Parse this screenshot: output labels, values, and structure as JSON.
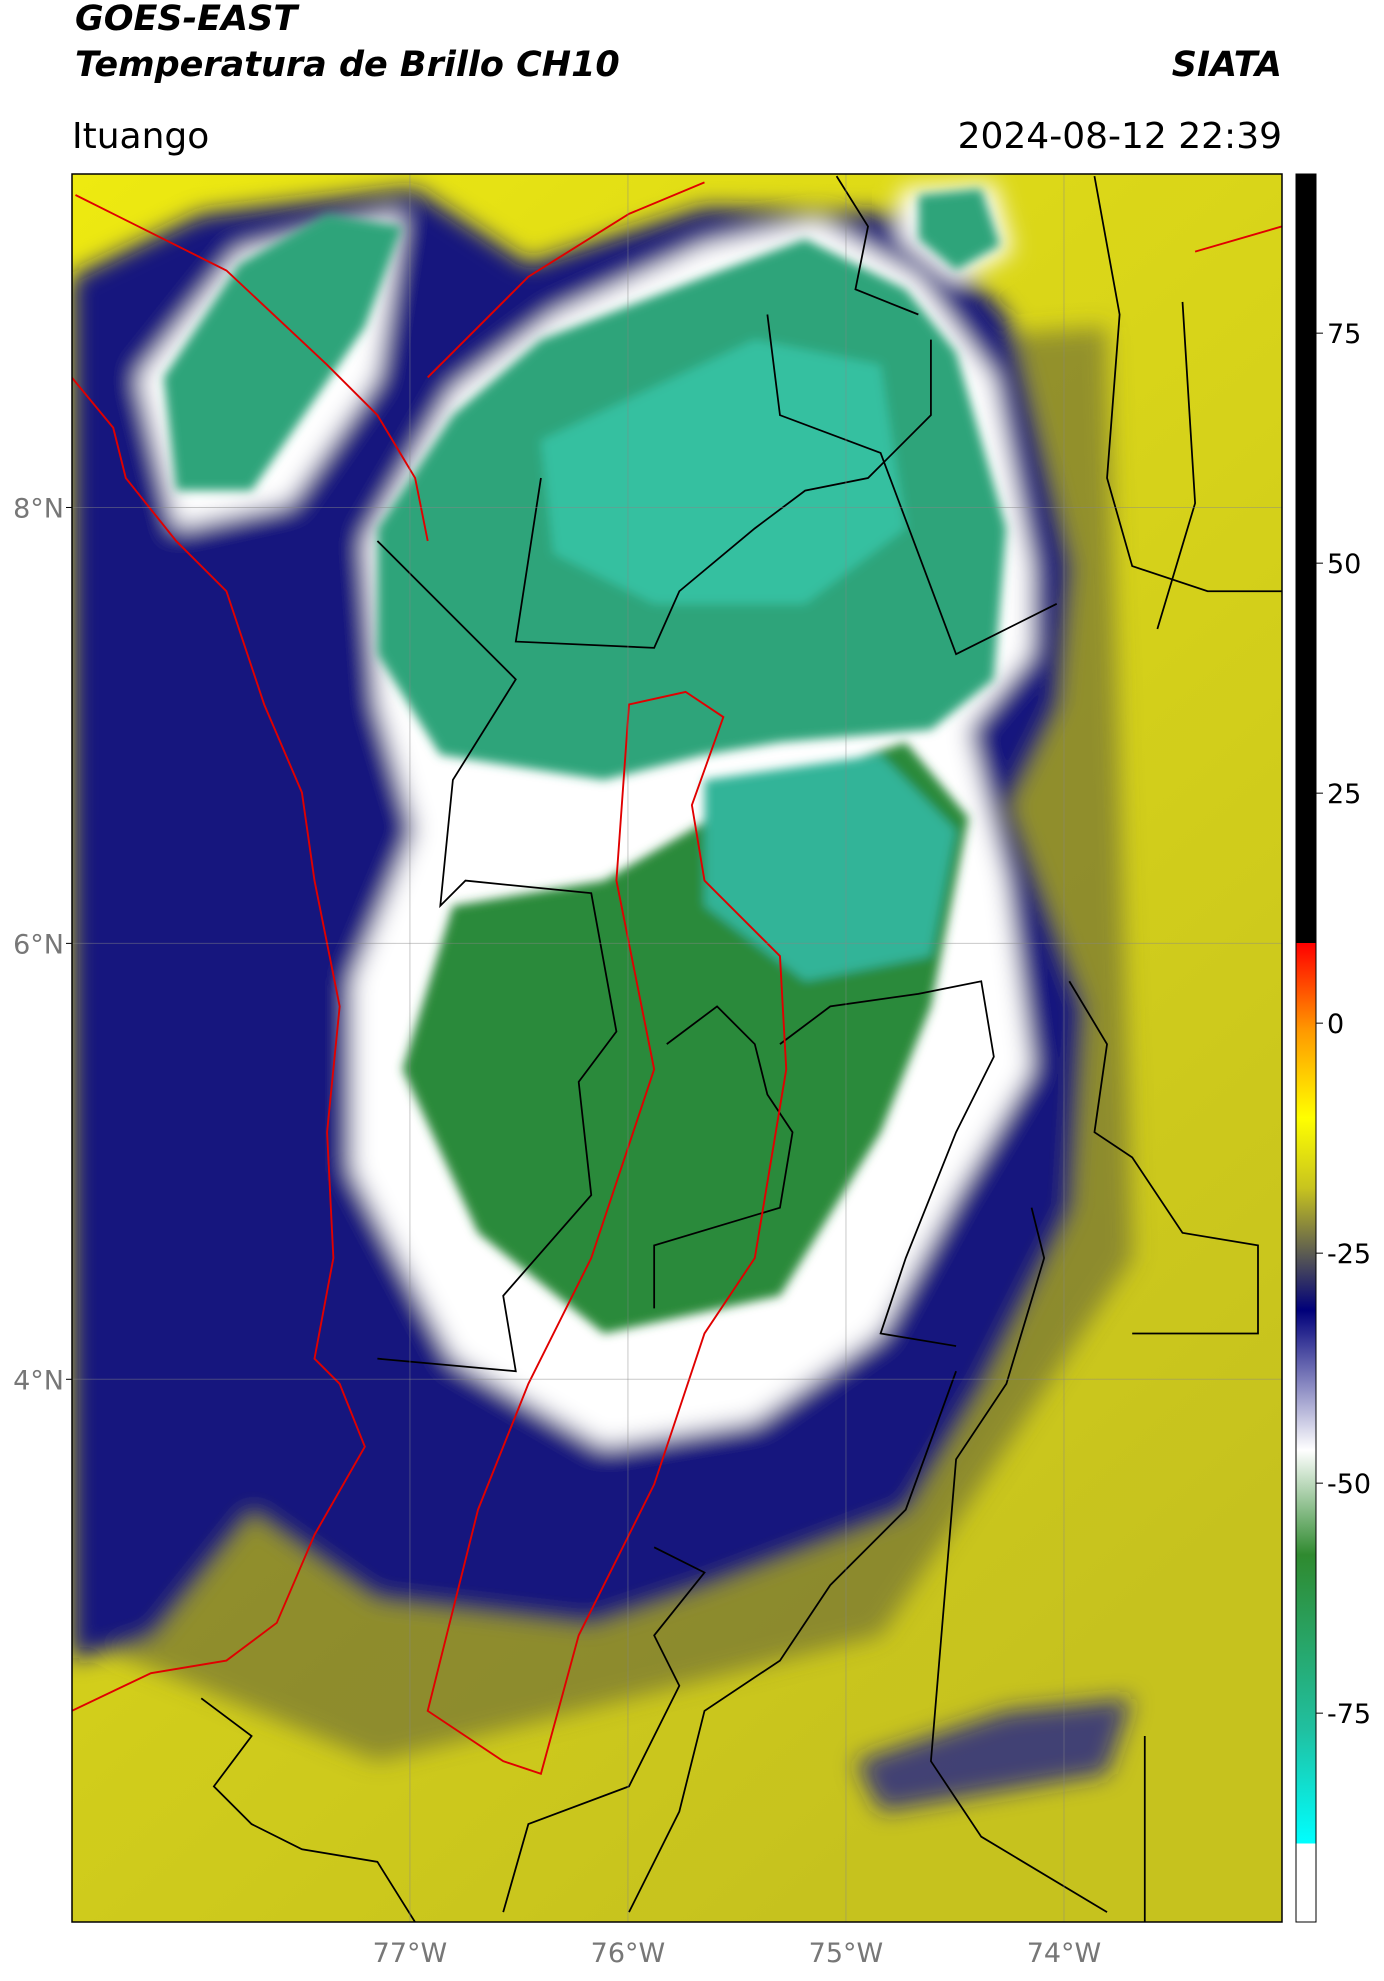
{
  "header": {
    "title": "GOES-EAST",
    "subtitle": "Temperatura de Brillo CH10",
    "source": "SIATA",
    "region": "Ituango",
    "timestamp": "2024-08-12 22:39"
  },
  "map": {
    "xlim": [
      -78.55,
      -73.0
    ],
    "ylim": [
      1.51,
      9.53
    ],
    "xticks": [
      {
        "value": -77,
        "label": "77°W"
      },
      {
        "value": -76,
        "label": "76°W"
      },
      {
        "value": -75,
        "label": "75°W"
      },
      {
        "value": -74,
        "label": "74°W"
      }
    ],
    "yticks": [
      {
        "value": 8,
        "label": "8°N"
      },
      {
        "value": 6,
        "label": "6°N"
      },
      {
        "value": 4,
        "label": "4°N"
      }
    ],
    "grid": true
  },
  "colorbar": {
    "lim": [
      -97.7,
      92.3
    ],
    "ticks": [
      75,
      50,
      25,
      0,
      -25,
      -50,
      -75
    ]
  }
}
